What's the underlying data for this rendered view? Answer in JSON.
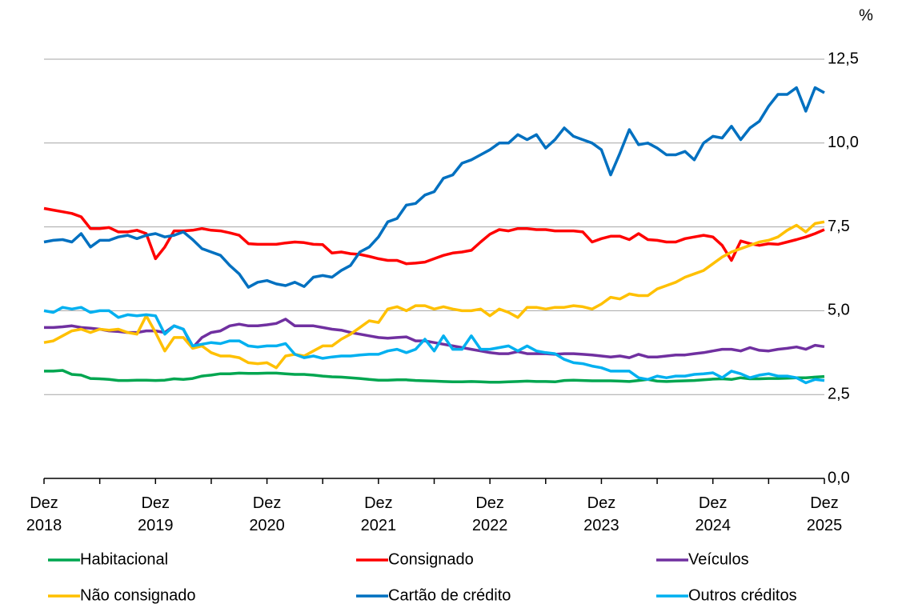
{
  "chart_data": {
    "type": "line",
    "y_unit": "%",
    "x": [
      "Dez 2018",
      null,
      null,
      null,
      null,
      null,
      null,
      null,
      null,
      null,
      null,
      null,
      "Dez 2019",
      null,
      null,
      null,
      null,
      null,
      null,
      null,
      null,
      null,
      null,
      null,
      "Dez 2020",
      null,
      null,
      null,
      null,
      null,
      null,
      null,
      null,
      null,
      null,
      null,
      "Dez 2021",
      null,
      null,
      null,
      null,
      null,
      null,
      null,
      null,
      null,
      null,
      null,
      "Dez 2022",
      null,
      null,
      null,
      null,
      null,
      null,
      null,
      null,
      null,
      null,
      null,
      "Dez 2023",
      null,
      null,
      null,
      null,
      null,
      null,
      null,
      null,
      null,
      null,
      null,
      "Dez 2024",
      null,
      null,
      null,
      null,
      null,
      null,
      null,
      null,
      null,
      null,
      null,
      "Dez 2025"
    ],
    "ylim": [
      0,
      12.5
    ],
    "yticks": [
      {
        "value": 0,
        "label": "0,0"
      },
      {
        "value": 2.5,
        "label": "2,5"
      },
      {
        "value": 5,
        "label": "5,0"
      },
      {
        "value": 7.5,
        "label": "7,5"
      },
      {
        "value": 10,
        "label": "10,0"
      },
      {
        "value": 12.5,
        "label": "12,5"
      }
    ],
    "grid": true,
    "legend": "bottom",
    "series": [
      {
        "name": "Habitacional",
        "color": "#00a650",
        "values": [
          3.2,
          3.2,
          3.22,
          3.1,
          3.08,
          2.98,
          2.97,
          2.95,
          2.92,
          2.92,
          2.93,
          2.93,
          2.92,
          2.93,
          2.97,
          2.95,
          2.98,
          3.05,
          3.08,
          3.12,
          3.12,
          3.14,
          3.13,
          3.13,
          3.14,
          3.14,
          3.12,
          3.1,
          3.1,
          3.08,
          3.05,
          3.03,
          3.02,
          3.0,
          2.98,
          2.95,
          2.93,
          2.93,
          2.94,
          2.94,
          2.92,
          2.91,
          2.9,
          2.89,
          2.88,
          2.88,
          2.89,
          2.88,
          2.87,
          2.87,
          2.88,
          2.89,
          2.9,
          2.89,
          2.89,
          2.88,
          2.92,
          2.93,
          2.92,
          2.91,
          2.91,
          2.91,
          2.9,
          2.89,
          2.92,
          2.95,
          2.9,
          2.89,
          2.9,
          2.91,
          2.92,
          2.94,
          2.96,
          2.97,
          2.95,
          3.0,
          2.97,
          2.97,
          2.98,
          2.98,
          2.99,
          3.0,
          3.0,
          3.02,
          3.04
        ]
      },
      {
        "name": "Consignado",
        "color": "#ff0000",
        "values": [
          8.05,
          8.0,
          7.95,
          7.9,
          7.8,
          7.45,
          7.45,
          7.48,
          7.35,
          7.35,
          7.4,
          7.3,
          6.55,
          6.9,
          7.38,
          7.38,
          7.4,
          7.45,
          7.4,
          7.38,
          7.32,
          7.25,
          7.0,
          6.98,
          6.98,
          6.98,
          7.02,
          7.05,
          7.03,
          6.98,
          6.97,
          6.72,
          6.75,
          6.7,
          6.68,
          6.62,
          6.55,
          6.5,
          6.5,
          6.4,
          6.42,
          6.45,
          6.55,
          6.65,
          6.72,
          6.75,
          6.8,
          7.05,
          7.28,
          7.42,
          7.38,
          7.45,
          7.45,
          7.42,
          7.42,
          7.38,
          7.38,
          7.38,
          7.35,
          7.05,
          7.15,
          7.22,
          7.22,
          7.12,
          7.3,
          7.12,
          7.1,
          7.05,
          7.05,
          7.15,
          7.2,
          7.25,
          7.2,
          6.95,
          6.5,
          7.08,
          7.0,
          6.95,
          7.0,
          6.98,
          7.05,
          7.12,
          7.2,
          7.3,
          7.42
        ]
      },
      {
        "name": "Veículos",
        "color": "#7030a0",
        "values": [
          4.5,
          4.5,
          4.52,
          4.55,
          4.5,
          4.48,
          4.45,
          4.4,
          4.38,
          4.35,
          4.35,
          4.4,
          4.4,
          4.35,
          4.55,
          4.45,
          3.9,
          4.2,
          4.35,
          4.4,
          4.55,
          4.6,
          4.55,
          4.55,
          4.58,
          4.62,
          4.75,
          4.55,
          4.55,
          4.55,
          4.5,
          4.45,
          4.42,
          4.35,
          4.3,
          4.25,
          4.2,
          4.18,
          4.2,
          4.22,
          4.1,
          4.1,
          4.05,
          4.0,
          3.95,
          3.9,
          3.85,
          3.8,
          3.75,
          3.72,
          3.72,
          3.78,
          3.72,
          3.72,
          3.72,
          3.7,
          3.72,
          3.72,
          3.7,
          3.68,
          3.65,
          3.62,
          3.65,
          3.6,
          3.7,
          3.62,
          3.62,
          3.65,
          3.68,
          3.68,
          3.72,
          3.75,
          3.8,
          3.85,
          3.85,
          3.8,
          3.9,
          3.82,
          3.8,
          3.85,
          3.88,
          3.92,
          3.85,
          3.97,
          3.93
        ]
      },
      {
        "name": "Não consignado",
        "color": "#ffc000",
        "values": [
          4.05,
          4.1,
          4.25,
          4.4,
          4.45,
          4.35,
          4.45,
          4.42,
          4.45,
          4.35,
          4.3,
          4.85,
          4.35,
          3.8,
          4.2,
          4.2,
          3.88,
          3.95,
          3.75,
          3.65,
          3.65,
          3.6,
          3.45,
          3.42,
          3.45,
          3.3,
          3.65,
          3.7,
          3.65,
          3.8,
          3.95,
          3.95,
          4.15,
          4.3,
          4.5,
          4.7,
          4.65,
          5.05,
          5.12,
          5.0,
          5.15,
          5.15,
          5.05,
          5.12,
          5.05,
          5.0,
          5.0,
          5.05,
          4.85,
          5.05,
          4.95,
          4.8,
          5.1,
          5.1,
          5.05,
          5.1,
          5.1,
          5.15,
          5.12,
          5.05,
          5.2,
          5.4,
          5.35,
          5.5,
          5.45,
          5.45,
          5.65,
          5.75,
          5.85,
          6.0,
          6.1,
          6.2,
          6.4,
          6.6,
          6.75,
          6.85,
          6.95,
          7.05,
          7.1,
          7.2,
          7.4,
          7.55,
          7.35,
          7.6,
          7.65
        ]
      },
      {
        "name": "Cartão de crédito",
        "color": "#0070c0",
        "values": [
          7.05,
          7.1,
          7.12,
          7.05,
          7.3,
          6.9,
          7.1,
          7.1,
          7.2,
          7.25,
          7.15,
          7.25,
          7.3,
          7.2,
          7.25,
          7.35,
          7.12,
          6.85,
          6.75,
          6.65,
          6.35,
          6.1,
          5.7,
          5.85,
          5.9,
          5.8,
          5.75,
          5.85,
          5.72,
          6.0,
          6.05,
          6.0,
          6.2,
          6.35,
          6.75,
          6.9,
          7.2,
          7.65,
          7.75,
          8.15,
          8.2,
          8.45,
          8.55,
          8.95,
          9.05,
          9.4,
          9.5,
          9.65,
          9.8,
          10.0,
          10.0,
          10.25,
          10.1,
          10.25,
          9.85,
          10.1,
          10.45,
          10.2,
          10.1,
          10.0,
          9.8,
          9.05,
          9.7,
          10.4,
          9.95,
          10.0,
          9.85,
          9.65,
          9.65,
          9.75,
          9.5,
          10.0,
          10.2,
          10.15,
          10.5,
          10.1,
          10.45,
          10.65,
          11.1,
          11.45,
          11.45,
          11.65,
          10.95,
          11.65,
          11.5
        ]
      },
      {
        "name": "Outros créditos",
        "color": "#00b0f0",
        "values": [
          5.0,
          4.95,
          5.1,
          5.05,
          5.1,
          4.95,
          5.0,
          5.0,
          4.8,
          4.88,
          4.85,
          4.88,
          4.85,
          4.3,
          4.55,
          4.45,
          3.95,
          4.0,
          4.05,
          4.02,
          4.1,
          4.1,
          3.95,
          3.92,
          3.95,
          3.95,
          4.02,
          3.7,
          3.6,
          3.65,
          3.58,
          3.62,
          3.65,
          3.65,
          3.68,
          3.7,
          3.7,
          3.8,
          3.85,
          3.75,
          3.85,
          4.15,
          3.8,
          4.25,
          3.85,
          3.85,
          4.25,
          3.85,
          3.85,
          3.9,
          3.95,
          3.8,
          3.95,
          3.8,
          3.75,
          3.72,
          3.55,
          3.45,
          3.42,
          3.35,
          3.3,
          3.2,
          3.2,
          3.2,
          3.0,
          2.95,
          3.05,
          3.0,
          3.05,
          3.05,
          3.1,
          3.12,
          3.15,
          3.0,
          3.2,
          3.12,
          3.0,
          3.08,
          3.12,
          3.05,
          3.05,
          3.0,
          2.85,
          2.95,
          2.92
        ]
      }
    ]
  }
}
